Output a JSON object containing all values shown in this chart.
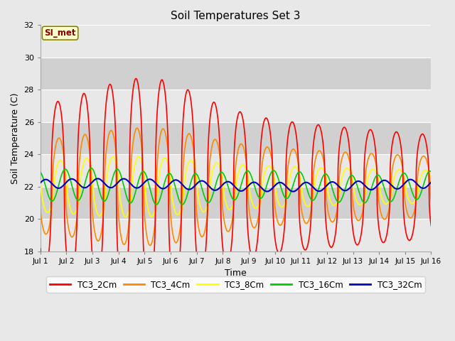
{
  "title": "Soil Temperatures Set 3",
  "xlabel": "Time",
  "ylabel": "Soil Temperature (C)",
  "ylim": [
    18,
    32
  ],
  "xlim": [
    0,
    15
  ],
  "background_color": "#e8e8e8",
  "plot_bg_color_light": "#e8e8e8",
  "plot_bg_color_dark": "#d0d0d0",
  "grid_color": "#ffffff",
  "annotation_text": "SI_met",
  "annotation_bg": "#ffffcc",
  "annotation_border": "#888800",
  "series_colors": {
    "TC3_2Cm": "#ff0000",
    "TC3_4Cm": "#ff8800",
    "TC3_8Cm": "#ffff00",
    "TC3_16Cm": "#00cc00",
    "TC3_32Cm": "#0000bb"
  },
  "xtick_labels": [
    "Jul 1",
    "Jul 2",
    "Jul 3",
    "Jul 4",
    "Jul 5",
    "Jul 6",
    "Jul 7",
    "Jul 8",
    "Jul 9",
    "Jul 10",
    "Jul 11",
    "Jul 12",
    "Jul 13",
    "Jul 14",
    "Jul 15",
    "Jul 16"
  ],
  "ytick_values": [
    18,
    20,
    22,
    24,
    26,
    28,
    30,
    32
  ],
  "n_points": 1440,
  "days": 15
}
